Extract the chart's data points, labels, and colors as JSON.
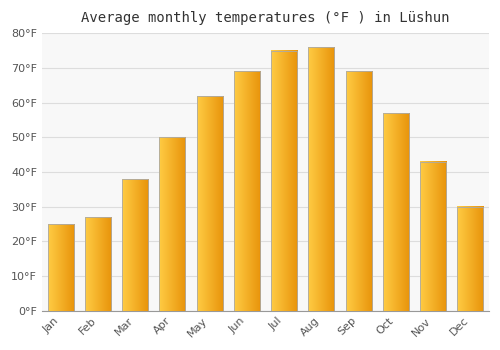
{
  "months": [
    "Jan",
    "Feb",
    "Mar",
    "Apr",
    "May",
    "Jun",
    "Jul",
    "Aug",
    "Sep",
    "Oct",
    "Nov",
    "Dec"
  ],
  "values": [
    25,
    27,
    38,
    50,
    62,
    69,
    75,
    76,
    69,
    57,
    43,
    30
  ],
  "bar_color_center": "#FFCC44",
  "bar_color_edge": "#E8930A",
  "bar_outline_color": "#AAAAAA",
  "title": "Average monthly temperatures (°F ) in Lüshun",
  "ylim": [
    0,
    80
  ],
  "yticks": [
    0,
    10,
    20,
    30,
    40,
    50,
    60,
    70,
    80
  ],
  "ytick_labels": [
    "0°F",
    "10°F",
    "20°F",
    "30°F",
    "40°F",
    "50°F",
    "60°F",
    "70°F",
    "80°F"
  ],
  "background_color": "#ffffff",
  "plot_bg_color": "#f8f8f8",
  "grid_color": "#dddddd",
  "title_fontsize": 10,
  "tick_fontsize": 8,
  "bar_width": 0.7
}
